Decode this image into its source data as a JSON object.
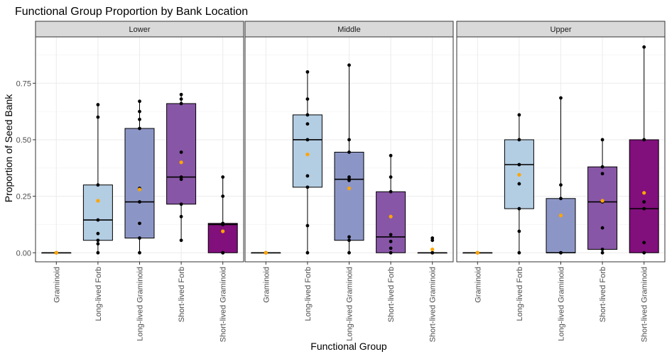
{
  "chart_data": {
    "type": "box",
    "title": "Functional Group Proportion by Bank Location",
    "xlabel": "Functional Group",
    "ylabel": "Proportion of Seed Bank",
    "ylim": [
      -0.04,
      0.955
    ],
    "y_ticks": [
      "0.00",
      "0.25",
      "0.50",
      "0.75"
    ],
    "y_tick_values": [
      0,
      0.25,
      0.5,
      0.75
    ],
    "grid": true,
    "categories": [
      "Graminoid",
      "Long-lived Forb",
      "Long-lived Graminoid",
      "Short-lived Forb",
      "Short-lived Graminoid"
    ],
    "fill_colors": [
      "#ffffff",
      "#b3cde3",
      "#8c96c6",
      "#8856a7",
      "#810f7c"
    ],
    "mean_color": "#ffa500",
    "panels": [
      {
        "name": "Lower",
        "boxes": [
          {
            "q1": 0,
            "median": 0,
            "q3": 0,
            "lower": 0,
            "upper": 0,
            "mean": 0,
            "points": [
              0,
              0,
              0,
              0
            ]
          },
          {
            "q1": 0.055,
            "median": 0.145,
            "q3": 0.3,
            "lower": 0,
            "upper": 0.655,
            "mean": 0.23,
            "points": [
              0.655,
              0.6,
              0.3,
              0.145,
              0.085,
              0.055,
              0.04,
              0
            ]
          },
          {
            "q1": 0.065,
            "median": 0.225,
            "q3": 0.55,
            "lower": 0,
            "upper": 0.67,
            "mean": 0.28,
            "points": [
              0.67,
              0.625,
              0.59,
              0.55,
              0.285,
              0.225,
              0.13,
              0.065,
              0
            ]
          },
          {
            "q1": 0.215,
            "median": 0.335,
            "q3": 0.66,
            "lower": 0.055,
            "upper": 0.7,
            "mean": 0.4,
            "points": [
              0.7,
              0.68,
              0.66,
              0.445,
              0.335,
              0.325,
              0.215,
              0.16,
              0.055
            ]
          },
          {
            "q1": 0,
            "median": 0.125,
            "q3": 0.13,
            "lower": 0,
            "upper": 0.335,
            "mean": 0.095,
            "points": [
              0.335,
              0.25,
              0.13,
              0.125,
              0,
              0,
              0
            ]
          }
        ]
      },
      {
        "name": "Middle",
        "boxes": [
          {
            "q1": 0,
            "median": 0,
            "q3": 0,
            "lower": 0,
            "upper": 0,
            "mean": 0,
            "points": [
              0,
              0,
              0,
              0
            ]
          },
          {
            "q1": 0.29,
            "median": 0.5,
            "q3": 0.61,
            "lower": 0,
            "upper": 0.8,
            "mean": 0.435,
            "points": [
              0.8,
              0.68,
              0.61,
              0.57,
              0.5,
              0.34,
              0.29,
              0.12,
              0
            ]
          },
          {
            "q1": 0.055,
            "median": 0.325,
            "q3": 0.445,
            "lower": 0,
            "upper": 0.83,
            "mean": 0.285,
            "points": [
              0.83,
              0.5,
              0.445,
              0.335,
              0.325,
              0.32,
              0.07,
              0.055,
              0
            ]
          },
          {
            "q1": 0,
            "median": 0.07,
            "q3": 0.27,
            "lower": 0,
            "upper": 0.43,
            "mean": 0.16,
            "points": [
              0.43,
              0.335,
              0.27,
              0.08,
              0.05,
              0.02,
              0
            ]
          },
          {
            "q1": 0,
            "median": 0,
            "q3": 0,
            "lower": 0,
            "upper": 0,
            "mean": 0.015,
            "points": [
              0.065,
              0.055,
              0,
              0
            ]
          }
        ]
      },
      {
        "name": "Upper",
        "boxes": [
          {
            "q1": 0,
            "median": 0,
            "q3": 0,
            "lower": 0,
            "upper": 0,
            "mean": 0,
            "points": [
              0,
              0,
              0
            ]
          },
          {
            "q1": 0.195,
            "median": 0.39,
            "q3": 0.5,
            "lower": 0,
            "upper": 0.61,
            "mean": 0.345,
            "points": [
              0.61,
              0.5,
              0.39,
              0.305,
              0.195,
              0.095,
              0
            ]
          },
          {
            "q1": 0,
            "median": 0,
            "q3": 0.24,
            "lower": 0,
            "upper": 0.685,
            "mean": 0.165,
            "points": [
              0.685,
              0.3,
              0.24,
              0,
              0
            ]
          },
          {
            "q1": 0.015,
            "median": 0.225,
            "q3": 0.38,
            "lower": 0,
            "upper": 0.5,
            "mean": 0.23,
            "points": [
              0.5,
              0.38,
              0.35,
              0.225,
              0.11,
              0.015,
              0
            ]
          },
          {
            "q1": 0,
            "median": 0.195,
            "q3": 0.5,
            "lower": 0,
            "upper": 0.91,
            "mean": 0.265,
            "points": [
              0.91,
              0.5,
              0.225,
              0.195,
              0.045,
              0
            ]
          }
        ]
      }
    ]
  }
}
